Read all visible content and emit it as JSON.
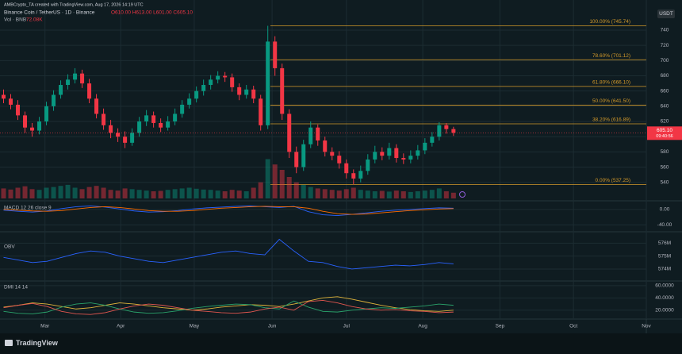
{
  "header": "AMBCrypto_TA created with TradingView.com, Aug 17, 2026 14:19 UTC",
  "footer_logo": "TradingView",
  "chart_data": [
    {
      "type": "candlestick",
      "title": "Binance Coin / TetherUS · 1D · Binance",
      "ohlc_legend": "O610.00 H613.00 L601.00 C605.10",
      "currency": "USDT",
      "last_price_label": "605.10",
      "countdown": "09:40:56",
      "up_color": "#089981",
      "down_color": "#f23645",
      "candles": [
        [
          655,
          662,
          644,
          650
        ],
        [
          650,
          656,
          636,
          642
        ],
        [
          642,
          648,
          622,
          628
        ],
        [
          628,
          633,
          605,
          612
        ],
        [
          612,
          618,
          600,
          608
        ],
        [
          608,
          626,
          603,
          620
        ],
        [
          620,
          646,
          615,
          640
        ],
        [
          640,
          661,
          634,
          655
        ],
        [
          655,
          674,
          650,
          668
        ],
        [
          668,
          682,
          662,
          675
        ],
        [
          675,
          690,
          670,
          683
        ],
        [
          683,
          688,
          664,
          670
        ],
        [
          670,
          676,
          644,
          650
        ],
        [
          650,
          656,
          624,
          630
        ],
        [
          630,
          637,
          609,
          615
        ],
        [
          615,
          622,
          598,
          605
        ],
        [
          605,
          611,
          593,
          600
        ],
        [
          600,
          607,
          585,
          592
        ],
        [
          592,
          611,
          588,
          605
        ],
        [
          605,
          626,
          600,
          620
        ],
        [
          620,
          635,
          614,
          628
        ],
        [
          628,
          633,
          612,
          618
        ],
        [
          618,
          624,
          606,
          612
        ],
        [
          612,
          627,
          608,
          620
        ],
        [
          620,
          637,
          615,
          630
        ],
        [
          630,
          648,
          625,
          642
        ],
        [
          642,
          657,
          637,
          650
        ],
        [
          650,
          666,
          645,
          660
        ],
        [
          660,
          675,
          654,
          668
        ],
        [
          668,
          681,
          662,
          675
        ],
        [
          675,
          686,
          670,
          680
        ],
        [
          680,
          685,
          672,
          678
        ],
        [
          678,
          683,
          659,
          665
        ],
        [
          665,
          670,
          648,
          655
        ],
        [
          655,
          668,
          650,
          662
        ],
        [
          662,
          667,
          644,
          650
        ],
        [
          650,
          655,
          608,
          615
        ],
        [
          615,
          745.74,
          610,
          725
        ],
        [
          725,
          732,
          680,
          690
        ],
        [
          690,
          696,
          622,
          630
        ],
        [
          630,
          636,
          572,
          580
        ],
        [
          580,
          587,
          552,
          560
        ],
        [
          560,
          596,
          555,
          590
        ],
        [
          590,
          620,
          585,
          612
        ],
        [
          612,
          616,
          588,
          595
        ],
        [
          595,
          600,
          574,
          580
        ],
        [
          580,
          586,
          569,
          575
        ],
        [
          575,
          581,
          558,
          565
        ],
        [
          565,
          570,
          545,
          552
        ],
        [
          552,
          557,
          537.25,
          545
        ],
        [
          545,
          562,
          540,
          555
        ],
        [
          555,
          577,
          550,
          570
        ],
        [
          570,
          588,
          565,
          580
        ],
        [
          580,
          586,
          569,
          575
        ],
        [
          575,
          592,
          570,
          585
        ],
        [
          585,
          590,
          566,
          572
        ],
        [
          572,
          578,
          564,
          570
        ],
        [
          570,
          582,
          565,
          575
        ],
        [
          575,
          589,
          570,
          582
        ],
        [
          582,
          598,
          577,
          592
        ],
        [
          592,
          606,
          587,
          600
        ],
        [
          600,
          619,
          595,
          615
        ],
        [
          615,
          618,
          604,
          610
        ],
        [
          610,
          613,
          601,
          605.1
        ]
      ],
      "volume_title": "Vol · BNB",
      "volume_legend": "72.08K",
      "volumes": [
        126,
        112,
        135,
        153,
        117,
        108,
        135,
        144,
        158,
        171,
        135,
        117,
        144,
        158,
        135,
        108,
        99,
        126,
        117,
        108,
        99,
        90,
        95,
        108,
        117,
        126,
        135,
        122,
        112,
        108,
        99,
        90,
        108,
        99,
        90,
        135,
        203,
        495,
        428,
        360,
        270,
        203,
        171,
        144,
        126,
        117,
        108,
        99,
        117,
        135,
        108,
        99,
        90,
        95,
        86,
        99,
        90,
        81,
        90,
        99,
        108,
        126,
        90,
        72.08
      ],
      "vlim": [
        0,
        540
      ],
      "ylim": [
        523,
        764
      ],
      "yticks": [
        540,
        560,
        580,
        600,
        620,
        640,
        660,
        680,
        700,
        720,
        740
      ],
      "xlim": [
        -0.5,
        90
      ],
      "xticks": [
        {
          "value": 5.8,
          "label": "Mar"
        },
        {
          "value": 16.4,
          "label": "Apr"
        },
        {
          "value": 26.7,
          "label": "May"
        },
        {
          "value": 37.6,
          "label": "Jun"
        },
        {
          "value": 48,
          "label": "Jul"
        },
        {
          "value": 58.7,
          "label": "Aug"
        },
        {
          "value": 69.5,
          "label": "Sep"
        },
        {
          "value": 79.8,
          "label": "Oct"
        },
        {
          "value": 90,
          "label": "Nov"
        }
      ],
      "grid": true,
      "fib": {
        "color": "#d49a2a",
        "levels": [
          {
            "value": 745.74,
            "label": "100.00% (745.74)"
          },
          {
            "value": 701.12,
            "label": "78.60% (701.12)"
          },
          {
            "value": 666.1,
            "label": "61.80% (666.10)"
          },
          {
            "value": 641.5,
            "label": "50.00% (641.50)"
          },
          {
            "value": 616.89,
            "label": "38.20% (616.89)"
          },
          {
            "value": 537.25,
            "label": "0.00% (537.25)"
          }
        ]
      }
    },
    {
      "type": "line",
      "title": "MACD 12 26 close 9",
      "ylim": [
        -52,
        12
      ],
      "yticks": [
        {
          "value": 0,
          "label": "0.00"
        },
        {
          "value": -40,
          "label": "-40.00"
        }
      ],
      "series": [
        {
          "color": "#2962ff",
          "values": [
            -2,
            -5,
            -7,
            -4,
            2,
            7,
            9,
            6,
            1,
            -4,
            -7,
            -6,
            -3,
            1,
            4,
            6,
            8,
            9,
            7,
            5,
            8,
            -6,
            -14,
            -16,
            -13,
            -9,
            -5,
            -2,
            0,
            2,
            4,
            3
          ]
        },
        {
          "color": "#ff6d00",
          "values": [
            0,
            -2,
            -4,
            -5,
            -3,
            1,
            5,
            7,
            5,
            1,
            -3,
            -5,
            -5,
            -3,
            0,
            3,
            5,
            7,
            8,
            7,
            7,
            3,
            -5,
            -11,
            -13,
            -12,
            -9,
            -6,
            -3,
            -1,
            1,
            2
          ]
        }
      ]
    },
    {
      "type": "line",
      "title": "OBV",
      "ylim": [
        573200000,
        576700000
      ],
      "yticks": [
        {
          "value": 574000000,
          "label": "574M"
        },
        {
          "value": 575000000,
          "label": "575M"
        },
        {
          "value": 576000000,
          "label": "576M"
        }
      ],
      "series": [
        {
          "color": "#2962ff",
          "values": [
            574900000,
            574700000,
            574500000,
            574600000,
            574900000,
            575200000,
            575400000,
            575300000,
            575000000,
            574800000,
            574600000,
            574500000,
            574700000,
            574900000,
            575100000,
            575300000,
            575400000,
            575200000,
            575100000,
            576300000,
            575400000,
            574600000,
            574500000,
            574200000,
            574000000,
            574100000,
            574200000,
            574300000,
            574250000,
            574350000,
            574500000,
            574400000
          ]
        }
      ]
    },
    {
      "type": "line",
      "title": "DMI 14 14",
      "ylim": [
        12,
        65
      ],
      "yticks": [
        {
          "value": 20,
          "label": "20.0000"
        },
        {
          "value": 40,
          "label": "40.0000"
        },
        {
          "value": 60,
          "label": "60.0000"
        }
      ],
      "series": [
        {
          "color": "#e0b43a",
          "values": [
            25,
            28,
            32,
            30,
            26,
            22,
            24,
            28,
            32,
            30,
            27,
            24,
            22,
            20,
            22,
            25,
            27,
            29,
            28,
            26,
            30,
            35,
            40,
            42,
            38,
            33,
            28,
            24,
            21,
            19,
            18,
            20
          ]
        },
        {
          "color": "#2aa36b",
          "values": [
            18,
            15,
            14,
            17,
            25,
            30,
            32,
            28,
            22,
            17,
            15,
            16,
            19,
            23,
            26,
            28,
            30,
            29,
            24,
            22,
            35,
            25,
            18,
            17,
            20,
            22,
            24,
            23,
            25,
            27,
            30,
            28
          ]
        },
        {
          "color": "#e2564f",
          "values": [
            24,
            28,
            31,
            26,
            18,
            14,
            13,
            16,
            22,
            27,
            30,
            28,
            24,
            20,
            18,
            16,
            15,
            17,
            22,
            25,
            20,
            34,
            36,
            32,
            26,
            22,
            20,
            21,
            19,
            18,
            16,
            17
          ]
        }
      ]
    }
  ]
}
